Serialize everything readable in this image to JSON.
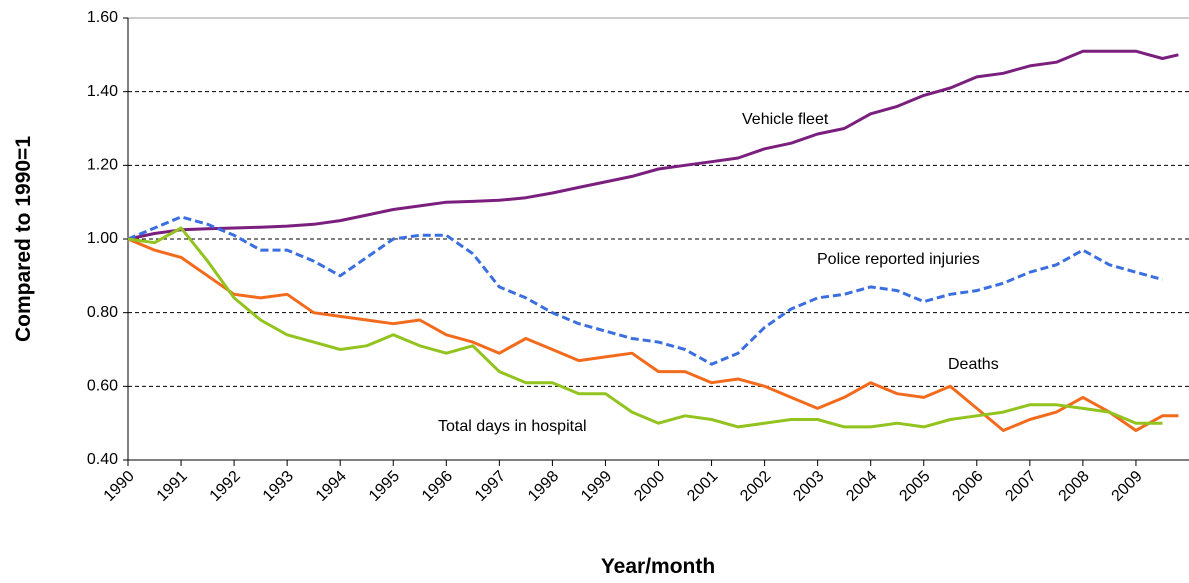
{
  "chart_data": {
    "type": "line",
    "x_label": "Year/month",
    "y_label": "Compared to 1990=1",
    "xlim": [
      1990,
      2010
    ],
    "xticks": [
      1990,
      1991,
      1992,
      1993,
      1994,
      1995,
      1996,
      1997,
      1998,
      1999,
      2000,
      2001,
      2002,
      2003,
      2004,
      2005,
      2006,
      2007,
      2008,
      2009
    ],
    "ylim": [
      0.4,
      1.6
    ],
    "yticks": [
      {
        "value": 0.4,
        "label": "0.40"
      },
      {
        "value": 0.6,
        "label": "0.60"
      },
      {
        "value": 0.8,
        "label": "0.80"
      },
      {
        "value": 1.0,
        "label": "1.00"
      },
      {
        "value": 1.2,
        "label": "1.20"
      },
      {
        "value": 1.4,
        "label": "1.40"
      },
      {
        "value": 1.6,
        "label": "1.60"
      }
    ],
    "grid": true,
    "x": [
      1990,
      1990.5,
      1991,
      1991.5,
      1992,
      1992.5,
      1993,
      1993.5,
      1994,
      1994.5,
      1995,
      1995.5,
      1996,
      1996.5,
      1997,
      1997.5,
      1998,
      1998.5,
      1999,
      1999.5,
      2000,
      2000.5,
      2001,
      2001.5,
      2002,
      2002.5,
      2003,
      2003.5,
      2004,
      2004.5,
      2005,
      2005.5,
      2006,
      2006.5,
      2007,
      2007.5,
      2008,
      2008.5,
      2009,
      2009.5,
      2009.8
    ],
    "series": [
      {
        "name": "Vehicle fleet",
        "color": "#7b1f7e",
        "dashed": false,
        "values": [
          1.0,
          1.015,
          1.025,
          1.028,
          1.03,
          1.032,
          1.035,
          1.04,
          1.05,
          1.065,
          1.08,
          1.09,
          1.1,
          1.102,
          1.105,
          1.112,
          1.125,
          1.14,
          1.155,
          1.17,
          1.19,
          1.2,
          1.21,
          1.22,
          1.245,
          1.26,
          1.285,
          1.3,
          1.34,
          1.36,
          1.39,
          1.41,
          1.44,
          1.45,
          1.47,
          1.48,
          1.51,
          1.51,
          1.51,
          1.49,
          1.5
        ]
      },
      {
        "name": "Police reported injuries",
        "color": "#3b6fe0",
        "dashed": true,
        "values": [
          1.0,
          1.03,
          1.06,
          1.04,
          1.01,
          0.97,
          0.97,
          0.94,
          0.9,
          0.95,
          1.0,
          1.01,
          1.01,
          0.96,
          0.87,
          0.84,
          0.8,
          0.77,
          0.75,
          0.73,
          0.72,
          0.7,
          0.66,
          0.69,
          0.76,
          0.81,
          0.84,
          0.85,
          0.87,
          0.86,
          0.83,
          0.85,
          0.86,
          0.88,
          0.91,
          0.93,
          0.97,
          0.93,
          0.91,
          0.89,
          null
        ]
      },
      {
        "name": "Deaths",
        "color": "#f26b1d",
        "dashed": false,
        "values": [
          1.0,
          0.97,
          0.95,
          0.9,
          0.85,
          0.84,
          0.85,
          0.8,
          0.79,
          0.78,
          0.77,
          0.78,
          0.74,
          0.72,
          0.69,
          0.73,
          0.7,
          0.67,
          0.68,
          0.69,
          0.64,
          0.64,
          0.61,
          0.62,
          0.6,
          0.57,
          0.54,
          0.57,
          0.61,
          0.58,
          0.57,
          0.6,
          0.54,
          0.48,
          0.51,
          0.53,
          0.57,
          0.53,
          0.48,
          0.52,
          0.52
        ]
      },
      {
        "name": "Total days in hospital",
        "color": "#92c31f",
        "dashed": false,
        "values": [
          1.0,
          0.99,
          1.03,
          0.94,
          0.84,
          0.78,
          0.74,
          0.72,
          0.7,
          0.71,
          0.74,
          0.71,
          0.69,
          0.71,
          0.64,
          0.61,
          0.61,
          0.58,
          0.58,
          0.53,
          0.5,
          0.52,
          0.51,
          0.49,
          0.5,
          0.51,
          0.51,
          0.49,
          0.49,
          0.5,
          0.49,
          0.51,
          0.52,
          0.53,
          0.55,
          0.55,
          0.54,
          0.53,
          0.5,
          0.5,
          null
        ]
      }
    ]
  }
}
